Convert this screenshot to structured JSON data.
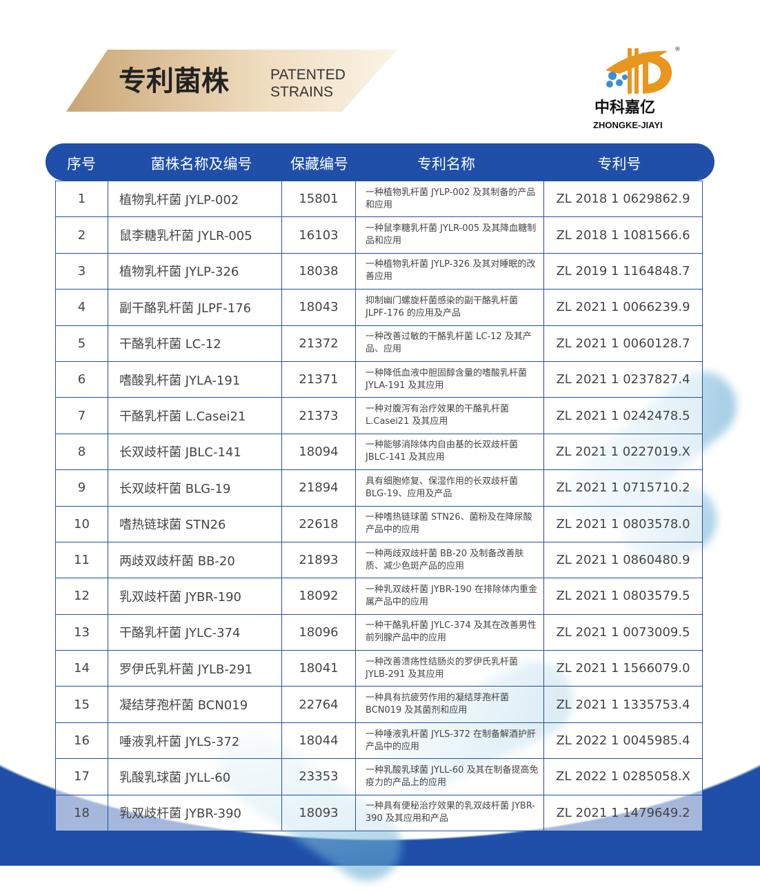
{
  "header": {
    "title_cn": "专利菌株",
    "title_en_line1": "PATENTED",
    "title_en_line2": "STRAINS"
  },
  "logo": {
    "name_cn": "中科嘉亿",
    "name_en": "ZHONGKE-JIAYI",
    "registered": "®"
  },
  "colors": {
    "primary": "#1f4fa8",
    "accent": "#e8961e",
    "gold": "#c9a574"
  },
  "table": {
    "columns": [
      "序号",
      "菌株名称及编号",
      "保藏编号",
      "专利名称",
      "专利号"
    ],
    "rows": [
      [
        "1",
        "植物乳杆菌 JYLP-002",
        "15801",
        "一种植物乳杆菌 JYLP-002 及其制备的产品和应用",
        "ZL 2018 1 0629862.9"
      ],
      [
        "2",
        "鼠李糖乳杆菌 JYLR-005",
        "16103",
        "一种鼠李糖乳杆菌 JYLR-005 及其降血糖制品和应用",
        "ZL 2018 1 1081566.6"
      ],
      [
        "3",
        "植物乳杆菌 JYLP-326",
        "18038",
        "一种植物乳杆菌 JYLP-326 及其对睡眠的改善应用",
        "ZL 2019 1 1164848.7"
      ],
      [
        "4",
        "副干酪乳杆菌 JLPF-176",
        "18043",
        "抑制幽门螺旋杆菌感染的副干酪乳杆菌 JLPF-176 的应用及产品",
        "ZL 2021 1 0066239.9"
      ],
      [
        "5",
        "干酪乳杆菌 LC-12",
        "21372",
        "一种改善过敏的干酪乳杆菌 LC-12 及其产品、应用",
        "ZL 2021 1 0060128.7"
      ],
      [
        "6",
        "嗜酸乳杆菌 JYLA-191",
        "21371",
        "一种降低血液中胆固醇含量的嗜酸乳杆菌 JYLA-191 及其应用",
        "ZL 2021 1 0237827.4"
      ],
      [
        "7",
        "干酪乳杆菌 L.Casei21",
        "21373",
        "一种对腹泻有治疗效果的干酪乳杆菌 L.Casei21 及其应用",
        "ZL 2021 1 0242478.5"
      ],
      [
        "8",
        "长双歧杆菌 JBLC-141",
        "18094",
        "一种能够消除体内自由基的长双歧杆菌 JBLC-141 及其应用",
        "ZL 2021 1 0227019.X"
      ],
      [
        "9",
        "长双歧杆菌 BLG-19",
        "21894",
        "具有细胞修复、保湿作用的长双歧杆菌 BLG-19、应用及产品",
        "ZL 2021 1 0715710.2"
      ],
      [
        "10",
        "嗜热链球菌 STN26",
        "22618",
        "一种嗜热链球菌 STN26、菌粉及在降尿酸产品中的应用",
        "ZL 2021 1 0803578.0"
      ],
      [
        "11",
        "两歧双歧杆菌 BB-20",
        "21893",
        "一种两歧双歧杆菌 BB-20 及制备改善肤质、减少色斑产品的应用",
        "ZL 2021 1 0860480.9"
      ],
      [
        "12",
        "乳双歧杆菌 JYBR-190",
        "18092",
        "一种乳双歧杆菌 JYBR-190 在排除体内重金属产品中的应用",
        "ZL 2021 1 0803579.5"
      ],
      [
        "13",
        "干酪乳杆菌 JYLC-374",
        "18096",
        "一种干酪乳杆菌 JYLC-374 及其在改善男性前列腺产品中的应用",
        "ZL 2021 1 0073009.5"
      ],
      [
        "14",
        "罗伊氏乳杆菌 JYLB-291",
        "18041",
        "一种改善溃疡性结肠炎的罗伊氏乳杆菌 JYLB-291 及其应用",
        "ZL 2021 1 1566079.0"
      ],
      [
        "15",
        "凝结芽孢杆菌 BCN019",
        "22764",
        "一种具有抗疲劳作用的凝结芽孢杆菌 BCN019 及其菌剂和应用",
        "ZL 2021 1 1335753.4"
      ],
      [
        "16",
        "唾液乳杆菌 JYLS-372",
        "18044",
        "一种唾液乳杆菌 JYLS-372 在制备解酒护肝产品中的应用",
        "ZL 2022 1 0045985.4"
      ],
      [
        "17",
        "乳酸乳球菌 JYLL-60",
        "23353",
        "一种乳酸乳球菌 JYLL-60 及其在制备提高免疫力的产品上的应用",
        "ZL 2022 1 0285058.X"
      ],
      [
        "18",
        "乳双歧杆菌 JYBR-390",
        "18093",
        "一种具有便秘治疗效果的乳双歧杆菌 JYBR-390 及其应用和产品",
        "ZL 2021 1 1479649.2"
      ]
    ]
  }
}
